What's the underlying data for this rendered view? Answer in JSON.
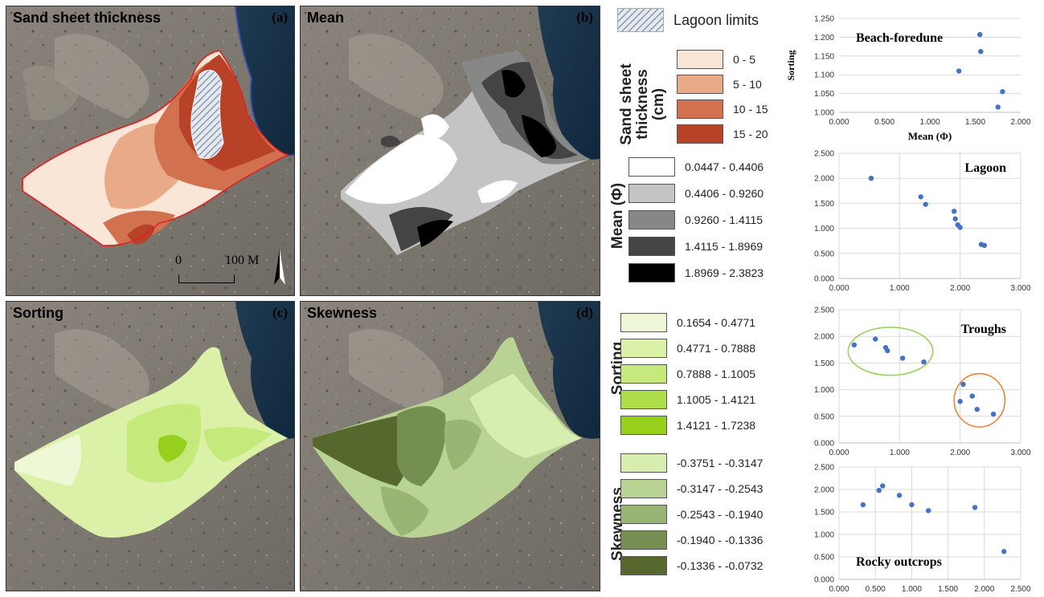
{
  "panels": [
    {
      "title": "Sand sheet thickness",
      "label": "(a)"
    },
    {
      "title": "Mean",
      "label": "(b)"
    },
    {
      "title": "Sorting",
      "label": "(c)"
    },
    {
      "title": "Skewness",
      "label": "(d)"
    }
  ],
  "scale": {
    "zero": "0",
    "dist": "100 M"
  },
  "legends": {
    "lagoon": {
      "label": "Lagoon limits"
    },
    "thickness": {
      "title_line1": "Sand sheet",
      "title_line2": "thickness",
      "title_line3": "(cm)",
      "items": [
        {
          "label": "0 - 5",
          "color": "#fae6d6"
        },
        {
          "label": "5 - 10",
          "color": "#e9aa8a"
        },
        {
          "label": "10 - 15",
          "color": "#d17150"
        },
        {
          "label": "15 - 20",
          "color": "#b84228"
        }
      ]
    },
    "mean": {
      "title": "Mean (Φ)",
      "items": [
        {
          "label": "0.0447 - 0.4406",
          "color": "#ffffff"
        },
        {
          "label": "0.4406 - 0.9260",
          "color": "#c4c4c4"
        },
        {
          "label": "0.9260 - 1.4115",
          "color": "#878787"
        },
        {
          "label": "1.4115 - 1.8969",
          "color": "#444444"
        },
        {
          "label": "1.8969 - 2.3823",
          "color": "#000000"
        }
      ]
    },
    "sorting": {
      "title": "Sorting",
      "items": [
        {
          "label": "0.1654 - 0.4771",
          "color": "#eef8d6"
        },
        {
          "label": "0.4771 - 0.7888",
          "color": "#dcf1a8"
        },
        {
          "label": "0.7888 - 1.1005",
          "color": "#c6e97c"
        },
        {
          "label": "1.1005 - 1.4121",
          "color": "#aedd4a"
        },
        {
          "label": "1.4121 - 1.7238",
          "color": "#96cf1c"
        }
      ]
    },
    "skewness": {
      "title": "Skewness",
      "items": [
        {
          "label": "-0.3751 - -0.3147",
          "color": "#d8edb0"
        },
        {
          "label": "-0.3147 - -0.2543",
          "color": "#b8d393"
        },
        {
          "label": "-0.2543 - -0.1940",
          "color": "#98b573"
        },
        {
          "label": "-0.1940 - -0.1336",
          "color": "#758f52"
        },
        {
          "label": "-0.1336 - -0.0732",
          "color": "#56682e"
        }
      ]
    }
  },
  "chart_data": [
    {
      "type": "scatter",
      "title": "Beach-foredune",
      "xlabel": "Mean (Φ)",
      "ylabel": "Sorting",
      "xlim": [
        0,
        2
      ],
      "ylim": [
        1.0,
        1.25
      ],
      "xticks": [
        "0.000",
        "0.500",
        "1.000",
        "1.500",
        "2.000"
      ],
      "yticks": [
        "1.000",
        "1.050",
        "1.100",
        "1.150",
        "1.200",
        "1.250"
      ],
      "points": [
        [
          1.32,
          1.11
        ],
        [
          1.55,
          1.207
        ],
        [
          1.56,
          1.162
        ],
        [
          1.8,
          1.055
        ],
        [
          1.75,
          1.014
        ]
      ],
      "color": "#4472c4"
    },
    {
      "type": "scatter",
      "title": "Lagoon",
      "xlim": [
        0,
        3
      ],
      "ylim": [
        0,
        2.5
      ],
      "xticks": [
        "0.000",
        "1.000",
        "2.000",
        "3.000"
      ],
      "yticks": [
        "0.000",
        "0.500",
        "1.000",
        "1.500",
        "2.000",
        "2.500"
      ],
      "points": [
        [
          0.53,
          2.0
        ],
        [
          1.35,
          1.63
        ],
        [
          1.43,
          1.48
        ],
        [
          1.9,
          1.34
        ],
        [
          1.92,
          1.19
        ],
        [
          1.96,
          1.07
        ],
        [
          2.0,
          1.02
        ],
        [
          2.35,
          0.68
        ],
        [
          2.4,
          0.66
        ]
      ],
      "color": "#4472c4"
    },
    {
      "type": "scatter",
      "title": "Troughs",
      "xlim": [
        0,
        3
      ],
      "ylim": [
        0,
        2.5
      ],
      "xticks": [
        "0.000",
        "1.000",
        "2.000",
        "3.000"
      ],
      "yticks": [
        "0.000",
        "0.500",
        "1.000",
        "1.500",
        "2.000",
        "2.500"
      ],
      "points": [
        [
          0.25,
          1.84
        ],
        [
          0.6,
          1.95
        ],
        [
          0.77,
          1.79
        ],
        [
          0.8,
          1.73
        ],
        [
          1.05,
          1.59
        ],
        [
          1.4,
          1.52
        ],
        [
          2.05,
          1.1
        ],
        [
          2.0,
          0.78
        ],
        [
          2.2,
          0.88
        ],
        [
          2.28,
          0.63
        ],
        [
          2.55,
          0.54
        ]
      ],
      "color": "#4472c4",
      "groups": [
        {
          "cx": 0.85,
          "cy": 1.72,
          "rx": 0.7,
          "ry": 0.45,
          "color": "#92d050"
        },
        {
          "cx": 2.32,
          "cy": 0.8,
          "rx": 0.42,
          "ry": 0.5,
          "color": "#ed7d31"
        }
      ]
    },
    {
      "type": "scatter",
      "title": "Rocky outcrops",
      "xlim": [
        0,
        2.5
      ],
      "ylim": [
        0,
        2.5
      ],
      "xticks": [
        "0.000",
        "0.500",
        "1.000",
        "1.500",
        "2.000",
        "2.500"
      ],
      "yticks": [
        "0.000",
        "0.500",
        "1.000",
        "1.500",
        "2.000",
        "2.500"
      ],
      "points": [
        [
          0.33,
          1.66
        ],
        [
          0.55,
          1.98
        ],
        [
          0.6,
          2.08
        ],
        [
          0.83,
          1.87
        ],
        [
          1.0,
          1.66
        ],
        [
          1.23,
          1.53
        ],
        [
          1.87,
          1.6
        ],
        [
          2.27,
          0.62
        ]
      ],
      "color": "#4472c4"
    }
  ]
}
